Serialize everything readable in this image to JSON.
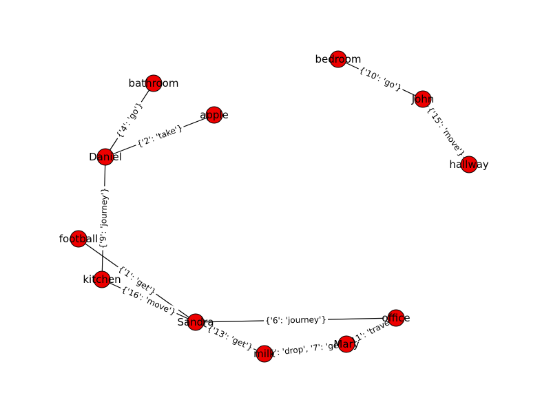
{
  "graph": {
    "node_color": "#ee0000",
    "edge_color": "#000000",
    "nodes": [
      {
        "id": "bathroom",
        "label": "bathroom"
      },
      {
        "id": "apple",
        "label": "apple"
      },
      {
        "id": "daniel",
        "label": "Daniel"
      },
      {
        "id": "football",
        "label": "football"
      },
      {
        "id": "kitchen",
        "label": "kitchen"
      },
      {
        "id": "sandra",
        "label": "Sandra"
      },
      {
        "id": "milk",
        "label": "milk"
      },
      {
        "id": "mary",
        "label": "Mary"
      },
      {
        "id": "office",
        "label": "office"
      },
      {
        "id": "bedroom",
        "label": "bedroom"
      },
      {
        "id": "john",
        "label": "John"
      },
      {
        "id": "hallway",
        "label": "hallway"
      }
    ],
    "edges": [
      {
        "from": "daniel",
        "to": "bathroom",
        "label": "{'4': 'go'}"
      },
      {
        "from": "daniel",
        "to": "apple",
        "label": "{'2': 'take'}"
      },
      {
        "from": "daniel",
        "to": "kitchen",
        "label": "{'9': 'journey'}"
      },
      {
        "from": "football",
        "to": "sandra",
        "label": "{'1': 'get'}"
      },
      {
        "from": "kitchen",
        "to": "sandra",
        "label": "{'16': 'move'}"
      },
      {
        "from": "sandra",
        "to": "office",
        "label": "{'6': 'journey'}"
      },
      {
        "from": "sandra",
        "to": "milk",
        "label": "{'13': 'get'}"
      },
      {
        "from": "milk",
        "to": "mary",
        "label": "{'5': 'drop', '7': 'get'}"
      },
      {
        "from": "mary",
        "to": "office",
        "label": "{'11': 'travel'}"
      },
      {
        "from": "bedroom",
        "to": "john",
        "label": "{'10': 'go'}"
      },
      {
        "from": "john",
        "to": "hallway",
        "label": "{'15': 'move'}"
      }
    ]
  }
}
